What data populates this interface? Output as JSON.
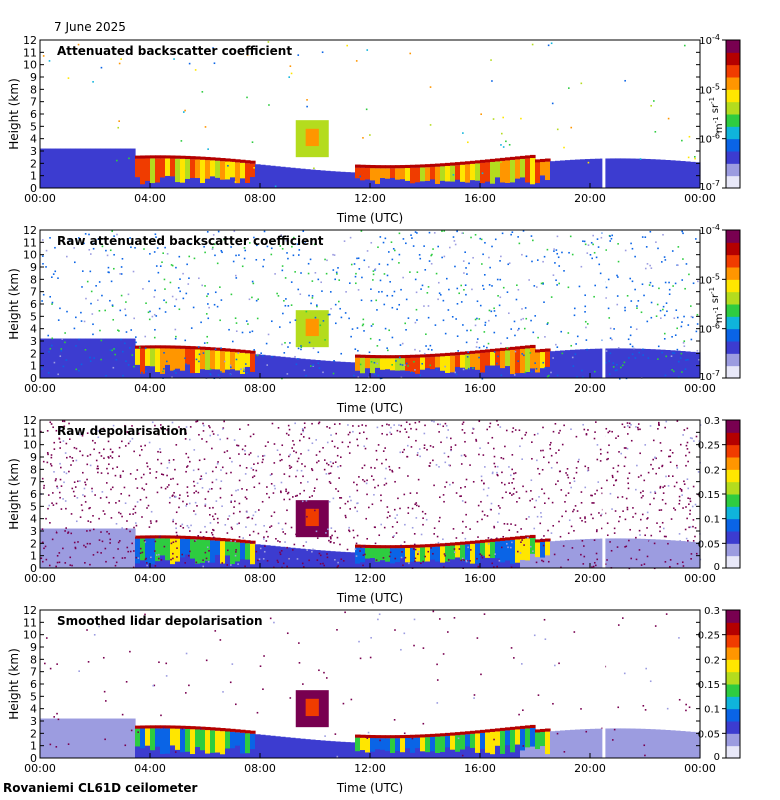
{
  "date": "7 June 2025",
  "station": "Rovaniemi CL61D ceilometer",
  "colors": {
    "colormap": [
      "#e8e8f8",
      "#9c9ce0",
      "#3c3cd0",
      "#0a64e6",
      "#0fb4dc",
      "#2ecc40",
      "#b4dc1e",
      "#ffe600",
      "#ff9600",
      "#f03c00",
      "#b40000",
      "#780050"
    ],
    "frame": "#000000"
  },
  "chart_data": [
    {
      "type": "heatmap",
      "title": "Attenuated backscatter coefficient",
      "xlabel": "Time (UTC)",
      "ylabel": "Height (km)",
      "xticks": [
        "00:00",
        "04:00",
        "08:00",
        "12:00",
        "16:00",
        "20:00",
        "00:00"
      ],
      "yticks": [
        "0",
        "1",
        "2",
        "3",
        "4",
        "5",
        "6",
        "7",
        "8",
        "9",
        "10",
        "11",
        "12"
      ],
      "ylim": [
        0,
        12
      ],
      "colorbar": {
        "scale": "log",
        "ticks": [
          "10^-7",
          "10^-6",
          "10^-5",
          "10^-4"
        ],
        "unit": "m^-1 sr^-1"
      }
    },
    {
      "type": "heatmap",
      "title": "Raw attenuated backscatter coefficient",
      "xlabel": "Time (UTC)",
      "ylabel": "Height (km)",
      "xticks": [
        "00:00",
        "04:00",
        "08:00",
        "12:00",
        "16:00",
        "20:00",
        "00:00"
      ],
      "yticks": [
        "0",
        "1",
        "2",
        "3",
        "4",
        "5",
        "6",
        "7",
        "8",
        "9",
        "10",
        "11",
        "12"
      ],
      "ylim": [
        0,
        12
      ],
      "colorbar": {
        "scale": "log",
        "ticks": [
          "10^-7",
          "10^-6",
          "10^-5",
          "10^-4"
        ],
        "unit": "m^-1 sr^-1"
      }
    },
    {
      "type": "heatmap",
      "title": "Raw depolarisation",
      "xlabel": "Time (UTC)",
      "ylabel": "Height (km)",
      "xticks": [
        "00:00",
        "04:00",
        "08:00",
        "12:00",
        "16:00",
        "20:00",
        "00:00"
      ],
      "yticks": [
        "0",
        "1",
        "2",
        "3",
        "4",
        "5",
        "6",
        "7",
        "8",
        "9",
        "10",
        "11",
        "12"
      ],
      "ylim": [
        0,
        12
      ],
      "colorbar": {
        "scale": "linear",
        "ticks": [
          "0",
          "0.05",
          "0.1",
          "0.15",
          "0.2",
          "0.25",
          "0.3"
        ],
        "unit": ""
      }
    },
    {
      "type": "heatmap",
      "title": "Smoothed lidar depolarisation",
      "xlabel": "Time (UTC)",
      "ylabel": "Height (km)",
      "xticks": [
        "00:00",
        "04:00",
        "08:00",
        "12:00",
        "16:00",
        "20:00",
        "00:00"
      ],
      "yticks": [
        "0",
        "1",
        "2",
        "3",
        "4",
        "5",
        "6",
        "7",
        "8",
        "9",
        "10",
        "11",
        "12"
      ],
      "ylim": [
        0,
        12
      ],
      "colorbar": {
        "scale": "linear",
        "ticks": [
          "0",
          "0.05",
          "0.1",
          "0.15",
          "0.2",
          "0.25",
          "0.3"
        ],
        "unit": ""
      }
    }
  ]
}
